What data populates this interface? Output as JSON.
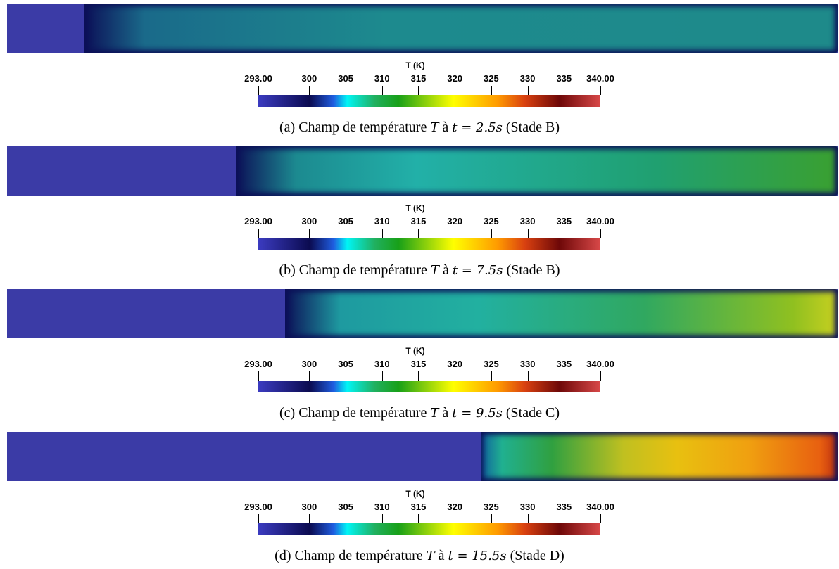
{
  "panels": [
    {
      "caption": {
        "prefix": "(a) Champ de température",
        "var": "T",
        "mid": "à",
        "eq": "t = 2.5s",
        "stage": "(Stade B)"
      },
      "colorbar": {
        "title": "T (K)",
        "ticks": [
          "293.00",
          "300",
          "305",
          "310",
          "315",
          "320",
          "325",
          "330",
          "335",
          "340.00"
        ]
      }
    },
    {
      "caption": {
        "prefix": "(b) Champ de température",
        "var": "T",
        "mid": "à",
        "eq": "t = 7.5s",
        "stage": "(Stade B)"
      },
      "colorbar": {
        "title": "T (K)",
        "ticks": [
          "293.00",
          "300",
          "305",
          "310",
          "315",
          "320",
          "325",
          "330",
          "335",
          "340.00"
        ]
      }
    },
    {
      "caption": {
        "prefix": "(c) Champ de température",
        "var": "T",
        "mid": "à",
        "eq": "t = 9.5s",
        "stage": "(Stade C)"
      },
      "colorbar": {
        "title": "T (K)",
        "ticks": [
          "293.00",
          "300",
          "305",
          "310",
          "315",
          "320",
          "325",
          "330",
          "335",
          "340.00"
        ]
      }
    },
    {
      "caption": {
        "prefix": "(d) Champ de température",
        "var": "T",
        "mid": "à",
        "eq": "t = 15.5s",
        "stage": "(Stade D)"
      },
      "colorbar": {
        "title": "T (K)",
        "ticks": [
          "293.00",
          "300",
          "305",
          "310",
          "315",
          "320",
          "325",
          "330",
          "335",
          "340.00"
        ]
      }
    }
  ]
}
